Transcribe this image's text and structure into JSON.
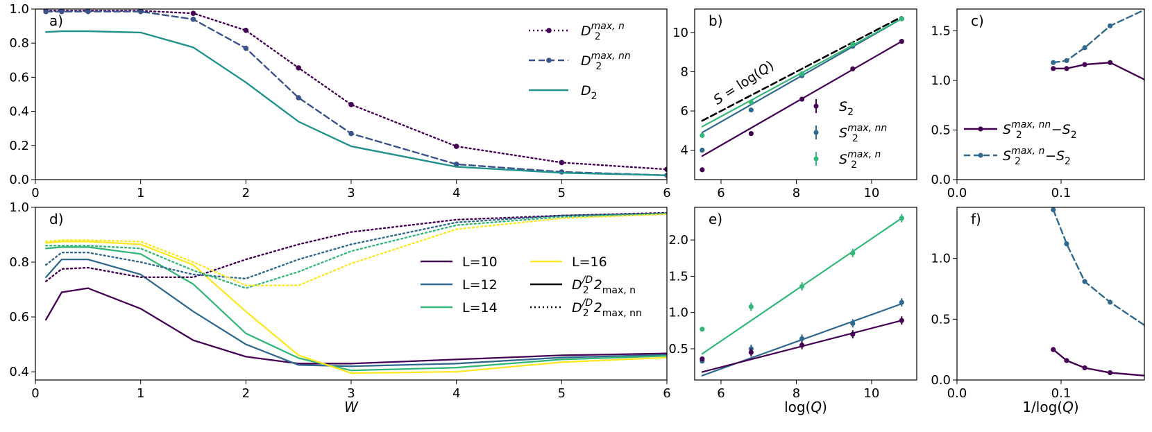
{
  "chart_data": [
    {
      "id": "a",
      "type": "line",
      "panel_label": "a)",
      "xlabel": "",
      "ylabel": "",
      "xlim": [
        0,
        6
      ],
      "ylim": [
        0,
        1.0
      ],
      "xticks": [
        0,
        1,
        2,
        3,
        4,
        5,
        6
      ],
      "yticks": [
        0.0,
        0.2,
        0.4,
        0.6,
        0.8,
        1.0
      ],
      "yticklabels": [
        "0.0",
        "0.2",
        "0.4",
        "0.6",
        "0.8",
        "1.0"
      ],
      "legend_position": "top-right",
      "series": [
        {
          "name": "D2max_n",
          "label_tex": [
            "D",
            "2",
            "max, n"
          ],
          "color": "#440154",
          "style": "dotted",
          "marker": true,
          "x": [
            0.1,
            0.25,
            0.5,
            1.0,
            1.5,
            2.0,
            2.5,
            3.0,
            4.0,
            5.0,
            6.0
          ],
          "y": [
            0.99,
            0.99,
            0.99,
            0.99,
            0.975,
            0.875,
            0.655,
            0.44,
            0.195,
            0.1,
            0.06
          ]
        },
        {
          "name": "D2max_nn",
          "label_tex": [
            "D",
            "2",
            "max, nn"
          ],
          "color": "#3b528b",
          "style": "dashed",
          "marker": true,
          "x": [
            0.1,
            0.25,
            0.5,
            1.0,
            1.5,
            2.0,
            2.5,
            3.0,
            4.0,
            5.0,
            6.0
          ],
          "y": [
            0.985,
            0.985,
            0.985,
            0.985,
            0.94,
            0.77,
            0.48,
            0.27,
            0.09,
            0.045,
            0.025
          ]
        },
        {
          "name": "D2",
          "label_tex": [
            "D",
            "2",
            ""
          ],
          "color": "#21918c",
          "style": "solid",
          "marker": false,
          "x": [
            0.1,
            0.25,
            0.5,
            1.0,
            1.5,
            2.0,
            2.5,
            3.0,
            4.0,
            5.0,
            6.0
          ],
          "y": [
            0.865,
            0.87,
            0.87,
            0.862,
            0.775,
            0.57,
            0.34,
            0.195,
            0.075,
            0.04,
            0.025
          ]
        }
      ]
    },
    {
      "id": "b",
      "type": "scatter",
      "panel_label": "b)",
      "xlim": [
        5.3,
        11.2
      ],
      "ylim": [
        2.5,
        11.2
      ],
      "xticks": [
        6,
        8,
        10
      ],
      "yticks": [
        4,
        6,
        8,
        10
      ],
      "annotation": "S = log(Q)",
      "legend_position": "lower-right",
      "reference_line": {
        "x": [
          5.5,
          10.8
        ],
        "y": [
          5.5,
          10.8
        ],
        "color": "#000000",
        "style": "dashed"
      },
      "series": [
        {
          "name": "S2",
          "label_tex": [
            "S",
            "2",
            ""
          ],
          "color": "#440154",
          "x": [
            5.5,
            6.8,
            8.15,
            9.5,
            10.8
          ],
          "y": [
            3.0,
            4.85,
            6.6,
            8.15,
            9.55
          ],
          "fit": {
            "x": [
              5.5,
              10.8
            ],
            "y": [
              3.7,
              9.55
            ]
          }
        },
        {
          "name": "S2max_nn",
          "label_tex": [
            "S",
            "2",
            "max, nn"
          ],
          "color": "#31688e",
          "x": [
            5.5,
            6.8,
            8.15,
            9.5,
            10.8
          ],
          "y": [
            4.0,
            6.05,
            7.8,
            9.3,
            10.7
          ],
          "fit": {
            "x": [
              5.5,
              10.8
            ],
            "y": [
              4.9,
              10.7
            ]
          }
        },
        {
          "name": "S2max_n",
          "label_tex": [
            "S",
            "2",
            "max, n"
          ],
          "color": "#35b779",
          "x": [
            5.5,
            6.8,
            8.15,
            9.5,
            10.8
          ],
          "y": [
            4.75,
            6.45,
            7.9,
            9.4,
            10.7
          ],
          "fit": {
            "x": [
              5.5,
              10.8
            ],
            "y": [
              5.2,
              10.7
            ]
          }
        }
      ]
    },
    {
      "id": "c",
      "type": "line",
      "panel_label": "c)",
      "xlim": [
        0.0,
        0.18
      ],
      "ylim": [
        0.0,
        1.72
      ],
      "xticks": [
        0.0,
        0.1
      ],
      "xticklabels": [
        "0.0",
        "0.1"
      ],
      "yticks": [
        0.0,
        0.5,
        1.0,
        1.5
      ],
      "yticklabels": [
        "0.0",
        "0.5",
        "1.0",
        "1.5"
      ],
      "legend_position": "lower-right",
      "series": [
        {
          "name": "S2max_nn_minus_S2",
          "label_tex": [
            "S",
            "2",
            "max, nn",
            "−S",
            "2"
          ],
          "color": "#440154",
          "style": "solid",
          "x": [
            0.0925,
            0.1053,
            0.1227,
            0.1471,
            0.1818
          ],
          "y": [
            1.12,
            1.12,
            1.16,
            1.18,
            1.0
          ]
        },
        {
          "name": "S2max_n_minus_S2",
          "label_tex": [
            "S",
            "2",
            "max, n",
            "−S",
            "2"
          ],
          "color": "#31688e",
          "style": "dashed",
          "x": [
            0.0925,
            0.1053,
            0.1227,
            0.1471,
            0.1818
          ],
          "y": [
            1.18,
            1.2,
            1.33,
            1.55,
            1.72
          ]
        }
      ]
    },
    {
      "id": "d",
      "type": "line",
      "panel_label": "d)",
      "xlabel": "W",
      "xlim": [
        0,
        6
      ],
      "ylim": [
        0.37,
        1.0
      ],
      "xticks": [
        0,
        1,
        2,
        3,
        4,
        5,
        6
      ],
      "yticks": [
        0.4,
        0.6,
        0.8,
        1.0
      ],
      "yticklabels": [
        "0.4",
        "0.6",
        "0.8",
        "1.0"
      ],
      "legend_position": "center-right",
      "legend": [
        {
          "text": "L=10",
          "color": "#440154",
          "style": "solid"
        },
        {
          "text": "L=12",
          "color": "#31688e",
          "style": "solid"
        },
        {
          "text": "L=14",
          "color": "#35b779",
          "style": "solid"
        },
        {
          "text": "L=16",
          "color": "#fde725",
          "style": "solid"
        },
        {
          "tex": [
            "D",
            "2",
            "/D",
            "2",
            "max, n"
          ],
          "color": "#000000",
          "style": "solid"
        },
        {
          "tex": [
            "D",
            "2",
            "/D",
            "2",
            "max, nn"
          ],
          "color": "#000000",
          "style": "dotted"
        }
      ],
      "x": [
        0.1,
        0.25,
        0.5,
        1.0,
        1.5,
        2.0,
        2.5,
        3.0,
        4.0,
        5.0,
        6.0
      ],
      "series": [
        {
          "name": "L=10 n",
          "color": "#440154",
          "style": "solid",
          "y": [
            0.59,
            0.69,
            0.705,
            0.63,
            0.515,
            0.455,
            0.43,
            0.43,
            0.445,
            0.46,
            0.467
          ]
        },
        {
          "name": "L=12 n",
          "color": "#31688e",
          "style": "solid",
          "y": [
            0.745,
            0.81,
            0.81,
            0.755,
            0.62,
            0.5,
            0.425,
            0.42,
            0.43,
            0.452,
            0.462
          ]
        },
        {
          "name": "L=14 n",
          "color": "#35b779",
          "style": "solid",
          "y": [
            0.85,
            0.855,
            0.855,
            0.83,
            0.72,
            0.54,
            0.45,
            0.405,
            0.415,
            0.445,
            0.458
          ]
        },
        {
          "name": "L=16 n",
          "color": "#fde725",
          "style": "solid",
          "y": [
            0.87,
            0.875,
            0.875,
            0.865,
            0.79,
            0.62,
            0.46,
            0.395,
            0.4,
            0.435,
            0.452
          ]
        },
        {
          "name": "L=10 nn",
          "color": "#440154",
          "style": "dotted",
          "y": [
            0.73,
            0.775,
            0.78,
            0.745,
            0.745,
            0.81,
            0.865,
            0.91,
            0.955,
            0.97,
            0.98
          ]
        },
        {
          "name": "L=12 nn",
          "color": "#31688e",
          "style": "dotted",
          "y": [
            0.79,
            0.835,
            0.835,
            0.8,
            0.755,
            0.74,
            0.81,
            0.865,
            0.945,
            0.97,
            0.978
          ]
        },
        {
          "name": "L=14 nn",
          "color": "#35b779",
          "style": "dotted",
          "y": [
            0.86,
            0.86,
            0.86,
            0.85,
            0.77,
            0.705,
            0.765,
            0.84,
            0.935,
            0.965,
            0.977
          ]
        },
        {
          "name": "L=16 nn",
          "color": "#fde725",
          "style": "dotted",
          "y": [
            0.875,
            0.88,
            0.88,
            0.875,
            0.8,
            0.715,
            0.715,
            0.795,
            0.92,
            0.96,
            0.975
          ]
        }
      ]
    },
    {
      "id": "e",
      "type": "scatter",
      "panel_label": "e)",
      "xlabel": "log(Q)",
      "xlim": [
        5.3,
        11.2
      ],
      "ylim": [
        0.07,
        2.45
      ],
      "xticks": [
        6,
        8,
        10
      ],
      "yticks": [
        0.5,
        1.0,
        1.5,
        2.0
      ],
      "yticklabels": [
        "0.5",
        "1.0",
        "1.5",
        "2.0"
      ],
      "series": [
        {
          "name": "S2max_n - S2",
          "color": "#35b779",
          "x": [
            5.5,
            6.8,
            8.15,
            9.5,
            10.8
          ],
          "y": [
            0.77,
            1.08,
            1.36,
            1.82,
            2.3
          ],
          "fit": {
            "x": [
              5.5,
              10.8
            ],
            "y": [
              0.43,
              2.3
            ]
          }
        },
        {
          "name": "S2max_nn - S2",
          "color": "#31688e",
          "x": [
            5.5,
            6.8,
            8.15,
            9.5,
            10.8
          ],
          "y": [
            0.33,
            0.5,
            0.64,
            0.85,
            1.14
          ],
          "fit": {
            "x": [
              5.5,
              10.8
            ],
            "y": [
              0.13,
              1.12
            ]
          }
        },
        {
          "name": "S2",
          "color": "#440154",
          "x": [
            5.5,
            6.8,
            8.15,
            9.5,
            10.8
          ],
          "y": [
            0.36,
            0.45,
            0.55,
            0.7,
            0.89
          ],
          "fit": {
            "x": [
              5.5,
              10.8
            ],
            "y": [
              0.18,
              0.89
            ]
          }
        }
      ]
    },
    {
      "id": "f",
      "type": "line",
      "panel_label": "f)",
      "xlabel": "1/log(Q)",
      "xlim": [
        0.0,
        0.18
      ],
      "ylim": [
        0.0,
        1.42
      ],
      "xticks": [
        0.0,
        0.1
      ],
      "xticklabels": [
        "0.0",
        "0.1"
      ],
      "yticks": [
        0.0,
        0.5,
        1.0
      ],
      "yticklabels": [
        "0.0",
        "0.5",
        "1.0"
      ],
      "series": [
        {
          "name": "dashed",
          "color": "#31688e",
          "style": "dashed",
          "x": [
            0.0925,
            0.1053,
            0.1227,
            0.1471,
            0.1818
          ],
          "y": [
            1.4,
            1.12,
            0.81,
            0.64,
            0.44
          ]
        },
        {
          "name": "solid",
          "color": "#440154",
          "style": "solid",
          "x": [
            0.0925,
            0.1053,
            0.1227,
            0.1471,
            0.1818
          ],
          "y": [
            0.25,
            0.16,
            0.1,
            0.06,
            0.035
          ]
        }
      ]
    }
  ]
}
